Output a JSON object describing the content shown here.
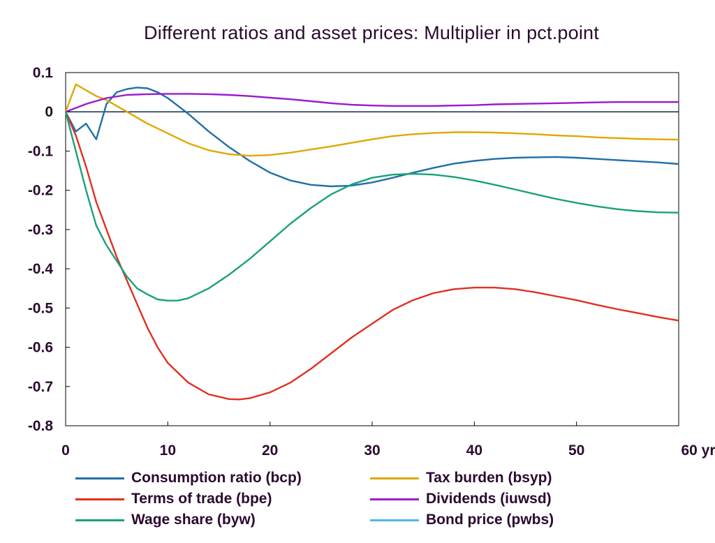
{
  "chart_data": {
    "type": "line",
    "title": "Different ratios and asset prices: Multiplier in pct.point",
    "xlabel": "",
    "ylabel": "",
    "xlim": [
      0,
      60
    ],
    "ylim": [
      -0.8,
      0.1
    ],
    "x_ticks": [
      0,
      10,
      20,
      30,
      40,
      50,
      60
    ],
    "x_tick_labels": [
      "0",
      "10",
      "20",
      "30",
      "40",
      "50",
      "60 yr"
    ],
    "y_ticks": [
      0.1,
      0,
      -0.1,
      -0.2,
      -0.3,
      -0.4,
      -0.5,
      -0.6,
      -0.7,
      -0.8
    ],
    "y_tick_labels": [
      "0.1",
      "0",
      "-0.1",
      "-0.2",
      "-0.3",
      "-0.4",
      "-0.5",
      "-0.6",
      "-0.7",
      "-0.8"
    ],
    "grid": false,
    "zero_line": true,
    "legend_position": "bottom",
    "series": [
      {
        "name": "Consumption ratio (bcp)",
        "color": "#1f6fa8",
        "x": [
          0,
          1,
          2,
          3,
          4,
          5,
          6,
          7,
          8,
          9,
          10,
          12,
          14,
          16,
          18,
          20,
          22,
          24,
          26,
          28,
          30,
          32,
          34,
          36,
          38,
          40,
          42,
          44,
          46,
          48,
          50,
          52,
          54,
          56,
          58,
          60
        ],
        "y": [
          0,
          -0.05,
          -0.03,
          -0.07,
          0.02,
          0.05,
          0.058,
          0.062,
          0.06,
          0.05,
          0.035,
          -0.005,
          -0.05,
          -0.09,
          -0.125,
          -0.155,
          -0.175,
          -0.186,
          -0.19,
          -0.188,
          -0.18,
          -0.168,
          -0.155,
          -0.143,
          -0.132,
          -0.125,
          -0.12,
          -0.117,
          -0.116,
          -0.115,
          -0.117,
          -0.12,
          -0.123,
          -0.126,
          -0.129,
          -0.133
        ]
      },
      {
        "name": "Tax burden (bsyp)",
        "color": "#e0a800",
        "x": [
          0,
          1,
          2,
          3,
          4,
          5,
          6,
          7,
          8,
          10,
          12,
          14,
          16,
          18,
          20,
          22,
          24,
          26,
          28,
          30,
          32,
          34,
          36,
          38,
          40,
          42,
          44,
          46,
          48,
          50,
          52,
          54,
          56,
          58,
          60
        ],
        "y": [
          0,
          0.07,
          0.055,
          0.04,
          0.03,
          0.015,
          0.0,
          -0.015,
          -0.03,
          -0.055,
          -0.08,
          -0.098,
          -0.108,
          -0.112,
          -0.11,
          -0.104,
          -0.096,
          -0.088,
          -0.079,
          -0.07,
          -0.062,
          -0.057,
          -0.054,
          -0.052,
          -0.052,
          -0.053,
          -0.055,
          -0.057,
          -0.06,
          -0.062,
          -0.065,
          -0.067,
          -0.069,
          -0.07,
          -0.071
        ]
      },
      {
        "name": "Terms of trade (bpe)",
        "color": "#e03020",
        "x": [
          0,
          1,
          2,
          3,
          4,
          5,
          6,
          7,
          8,
          9,
          10,
          12,
          14,
          16,
          17,
          18,
          20,
          22,
          24,
          26,
          28,
          30,
          32,
          34,
          36,
          38,
          40,
          42,
          44,
          46,
          48,
          50,
          52,
          54,
          56,
          58,
          60
        ],
        "y": [
          0,
          -0.06,
          -0.14,
          -0.23,
          -0.3,
          -0.37,
          -0.43,
          -0.49,
          -0.55,
          -0.6,
          -0.64,
          -0.69,
          -0.72,
          -0.732,
          -0.733,
          -0.73,
          -0.715,
          -0.69,
          -0.655,
          -0.615,
          -0.575,
          -0.54,
          -0.505,
          -0.48,
          -0.462,
          -0.452,
          -0.448,
          -0.448,
          -0.452,
          -0.46,
          -0.47,
          -0.48,
          -0.492,
          -0.503,
          -0.513,
          -0.523,
          -0.532
        ]
      },
      {
        "name": "Dividends (iuwsd)",
        "color": "#9a1ad0",
        "x": [
          0,
          2,
          4,
          6,
          8,
          10,
          12,
          14,
          16,
          18,
          20,
          22,
          24,
          26,
          28,
          30,
          32,
          34,
          36,
          38,
          40,
          42,
          44,
          46,
          48,
          50,
          52,
          54,
          56,
          58,
          60
        ],
        "y": [
          0,
          0.02,
          0.035,
          0.043,
          0.045,
          0.046,
          0.046,
          0.045,
          0.043,
          0.04,
          0.036,
          0.032,
          0.027,
          0.022,
          0.018,
          0.016,
          0.015,
          0.015,
          0.015,
          0.016,
          0.017,
          0.019,
          0.02,
          0.021,
          0.022,
          0.023,
          0.024,
          0.025,
          0.025,
          0.025,
          0.025
        ]
      },
      {
        "name": "Wage share (byw)",
        "color": "#1aa07a",
        "x": [
          0,
          1,
          2,
          3,
          4,
          5,
          6,
          7,
          8,
          9,
          10,
          11,
          12,
          14,
          16,
          18,
          20,
          22,
          24,
          26,
          28,
          30,
          32,
          34,
          36,
          38,
          40,
          42,
          44,
          46,
          48,
          50,
          52,
          54,
          56,
          58,
          60
        ],
        "y": [
          0,
          -0.1,
          -0.2,
          -0.29,
          -0.34,
          -0.38,
          -0.42,
          -0.45,
          -0.465,
          -0.478,
          -0.481,
          -0.481,
          -0.475,
          -0.45,
          -0.415,
          -0.375,
          -0.33,
          -0.285,
          -0.245,
          -0.21,
          -0.185,
          -0.168,
          -0.16,
          -0.158,
          -0.16,
          -0.166,
          -0.175,
          -0.186,
          -0.198,
          -0.21,
          -0.222,
          -0.232,
          -0.241,
          -0.248,
          -0.253,
          -0.256,
          -0.257
        ]
      },
      {
        "name": "Bond price (pwbs)",
        "color": "#4fb6e8",
        "x": [],
        "y": []
      }
    ]
  }
}
